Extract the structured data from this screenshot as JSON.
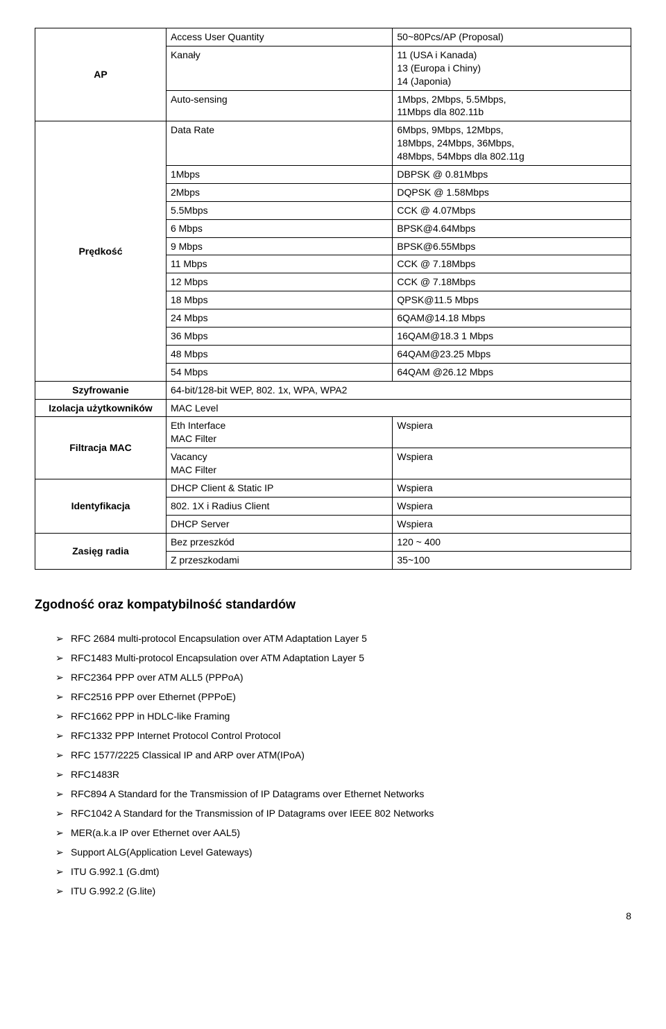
{
  "spec": {
    "rows": [
      {
        "label": "AP",
        "label_rowspan": 3,
        "sub": "Access User Quantity",
        "val": "50~80Pcs/AP (Proposal)"
      },
      {
        "sub": "Kanały",
        "val": "11 (USA i Kanada)\n13 (Europa i Chiny)\n14 (Japonia)"
      },
      {
        "sub": "Auto-sensing",
        "val": "1Mbps, 2Mbps, 5.5Mbps,\n11Mbps dla 802.11b"
      },
      {
        "label": "Prędkość",
        "label_rowspan": 13,
        "sub": "Data Rate",
        "val": "6Mbps, 9Mbps, 12Mbps,\n18Mbps, 24Mbps, 36Mbps,\n48Mbps, 54Mbps dla 802.11g"
      },
      {
        "sub": "1Mbps",
        "val": "DBPSK @ 0.81Mbps"
      },
      {
        "sub": "2Mbps",
        "val": "DQPSK @ 1.58Mbps"
      },
      {
        "sub": "5.5Mbps",
        "val": "CCK @ 4.07Mbps"
      },
      {
        "sub": "6 Mbps",
        "val": "BPSK@4.64Mbps"
      },
      {
        "sub": "9 Mbps",
        "val": "BPSK@6.55Mbps"
      },
      {
        "sub": "11 Mbps",
        "val": "CCK @ 7.18Mbps"
      },
      {
        "sub": "12 Mbps",
        "val": "CCK @ 7.18Mbps"
      },
      {
        "sub": "18 Mbps",
        "val": "QPSK@11.5 Mbps"
      },
      {
        "sub": "24 Mbps",
        "val": "6QAM@14.18 Mbps"
      },
      {
        "sub": "36 Mbps",
        "val": "16QAM@18.3 1 Mbps"
      },
      {
        "sub": "48 Mbps",
        "val": "64QAM@23.25 Mbps"
      },
      {
        "sub": "54 Mbps",
        "val": "64QAM @26.12 Mbps"
      },
      {
        "label": "Szyfrowanie",
        "label_rowspan": 1,
        "sub_colspan": 2,
        "sub": "64-bit/128-bit WEP, 802. 1x, WPA, WPA2"
      },
      {
        "label": "Izolacja użytkowników",
        "label_rowspan": 1,
        "sub_colspan": 2,
        "sub": "MAC Level"
      },
      {
        "label": "Filtracja MAC",
        "label_rowspan": 2,
        "sub": "Eth Interface\nMAC Filter",
        "val": "Wspiera"
      },
      {
        "sub": "Vacancy\nMAC Filter",
        "val": "Wspiera"
      },
      {
        "label": "Identyfikacja",
        "label_rowspan": 3,
        "sub": "DHCP Client & Static IP",
        "val": "Wspiera"
      },
      {
        "sub": "802. 1X i Radius Client",
        "val": "Wspiera"
      },
      {
        "sub": "DHCP Server",
        "val": "Wspiera"
      },
      {
        "label": "Zasięg radia",
        "label_rowspan": 2,
        "sub": "Bez przeszkód",
        "val": "120 ~ 400"
      },
      {
        "sub": "Z przeszkodami",
        "val": "35~100"
      }
    ]
  },
  "standards_heading": "Zgodność oraz kompatybilność standardów",
  "standards": [
    "RFC 2684 multi-protocol Encapsulation over ATM Adaptation Layer 5",
    "RFC1483 Multi-protocol Encapsulation over ATM Adaptation Layer 5",
    "RFC2364 PPP over ATM ALL5 (PPPoA)",
    "RFC2516 PPP over Ethernet (PPPoE)",
    "RFC1662 PPP in HDLC-like Framing",
    "RFC1332 PPP Internet Protocol Control Protocol",
    "RFC 1577/2225 Classical IP and ARP over ATM(IPoA)",
    "RFC1483R",
    "RFC894 A Standard for the Transmission of IP Datagrams over Ethernet Networks",
    "RFC1042 A Standard for the Transmission of IP Datagrams over IEEE 802 Networks",
    "MER(a.k.a IP over Ethernet over AAL5)",
    "Support ALG(Application Level Gateways)",
    "ITU G.992.1 (G.dmt)",
    "ITU G.992.2 (G.lite)"
  ],
  "page_number": "8"
}
